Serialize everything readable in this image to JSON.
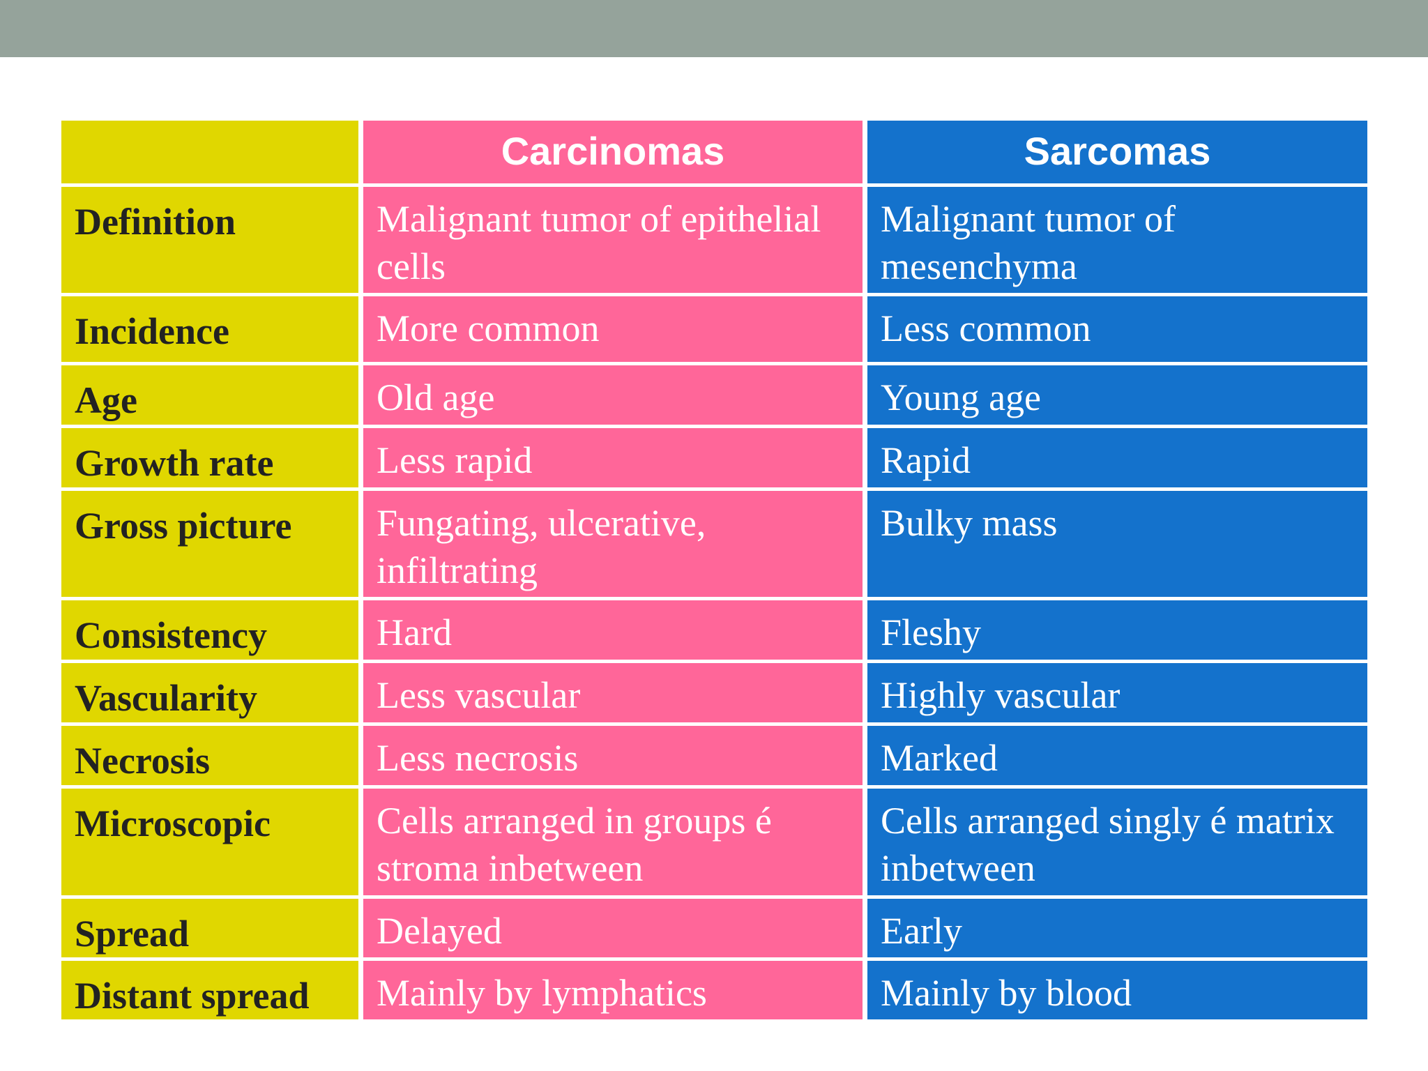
{
  "colors": {
    "top_bar": "#95a39b",
    "label_column": "#e0d700",
    "carcinomas_column": "#ff6699",
    "sarcomas_column": "#1472cc"
  },
  "table": {
    "headers": {
      "label": "",
      "carcinomas": "Carcinomas",
      "sarcomas": "Sarcomas"
    },
    "rows": [
      {
        "label": "Definition",
        "carcinomas": "Malignant tumor of epithelial cells",
        "sarcomas": "Malignant tumor of mesenchyma"
      },
      {
        "label": "Incidence",
        "carcinomas": "More common",
        "sarcomas": "Less common"
      },
      {
        "label": "Age",
        "carcinomas": "Old age",
        "sarcomas": "Young age"
      },
      {
        "label": "Growth rate",
        "carcinomas": "Less rapid",
        "sarcomas": "Rapid"
      },
      {
        "label": "Gross picture",
        "carcinomas": "Fungating, ulcerative, infiltrating",
        "sarcomas": "Bulky mass"
      },
      {
        "label": "Consistency",
        "carcinomas": "Hard",
        "sarcomas": "Fleshy"
      },
      {
        "label": "Vascularity",
        "carcinomas": "Less vascular",
        "sarcomas": "Highly vascular"
      },
      {
        "label": "Necrosis",
        "carcinomas": "Less necrosis",
        "sarcomas": "Marked"
      },
      {
        "label": "Microscopic",
        "carcinomas": "Cells arranged in groups é stroma inbetween",
        "sarcomas": "Cells arranged singly é matrix inbetween"
      },
      {
        "label": "Spread",
        "carcinomas": "Delayed",
        "sarcomas": "Early"
      },
      {
        "label": "Distant spread",
        "carcinomas": "Mainly by lymphatics",
        "sarcomas": "Mainly by blood"
      }
    ]
  }
}
